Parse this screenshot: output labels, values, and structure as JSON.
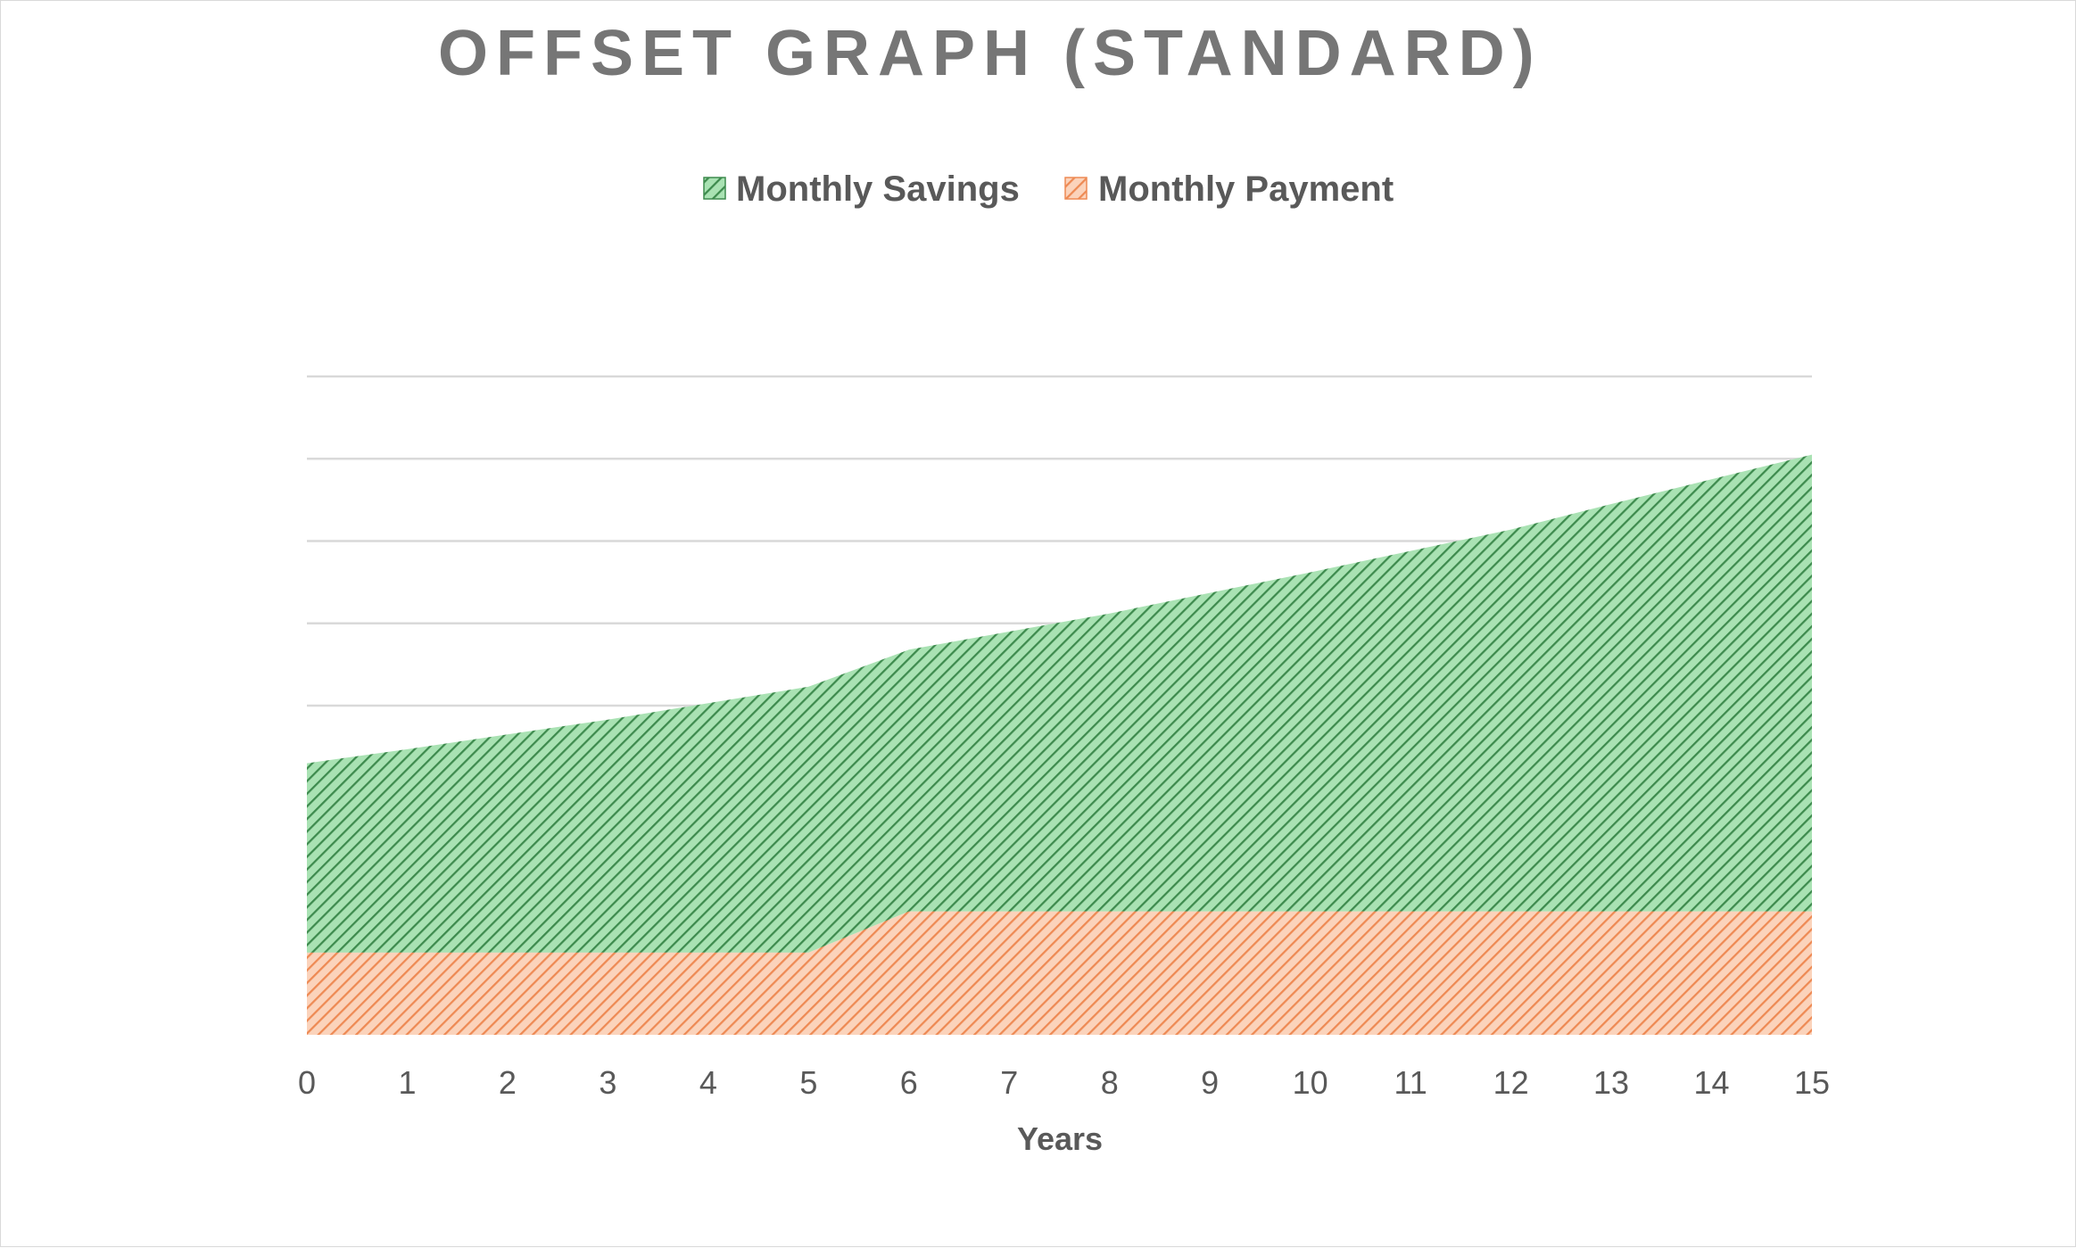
{
  "chart_data": {
    "type": "area",
    "stacked": true,
    "title": "OFFSET GRAPH (STANDARD)",
    "xlabel": "Years",
    "ylabel": "",
    "x": [
      0,
      1,
      2,
      3,
      4,
      5,
      6,
      7,
      8,
      9,
      10,
      11,
      12,
      13,
      14,
      15
    ],
    "ylim": [
      0,
      8
    ],
    "y_gridlines": [
      1,
      2,
      3,
      4,
      5,
      6,
      7,
      8
    ],
    "y_tick_labels_visible": false,
    "grid": true,
    "legend_position": "top",
    "series": [
      {
        "name": "Monthly Payment",
        "color": "#f4a67a",
        "pattern": "diagonal-hatch",
        "values": [
          1,
          1,
          1,
          1,
          1,
          1,
          1.5,
          1.5,
          1.5,
          1.5,
          1.5,
          1.5,
          1.5,
          1.5,
          1.5,
          1.5
        ]
      },
      {
        "name": "Monthly Savings",
        "color": "#7ccb8c",
        "pattern": "diagonal-hatch",
        "values": [
          2.3,
          2.47,
          2.65,
          2.83,
          3.03,
          3.23,
          3.18,
          3.4,
          3.62,
          3.87,
          4.12,
          4.38,
          4.64,
          4.95,
          5.25,
          5.55
        ]
      }
    ],
    "legend_order": [
      "Monthly Savings",
      "Monthly Payment"
    ]
  }
}
